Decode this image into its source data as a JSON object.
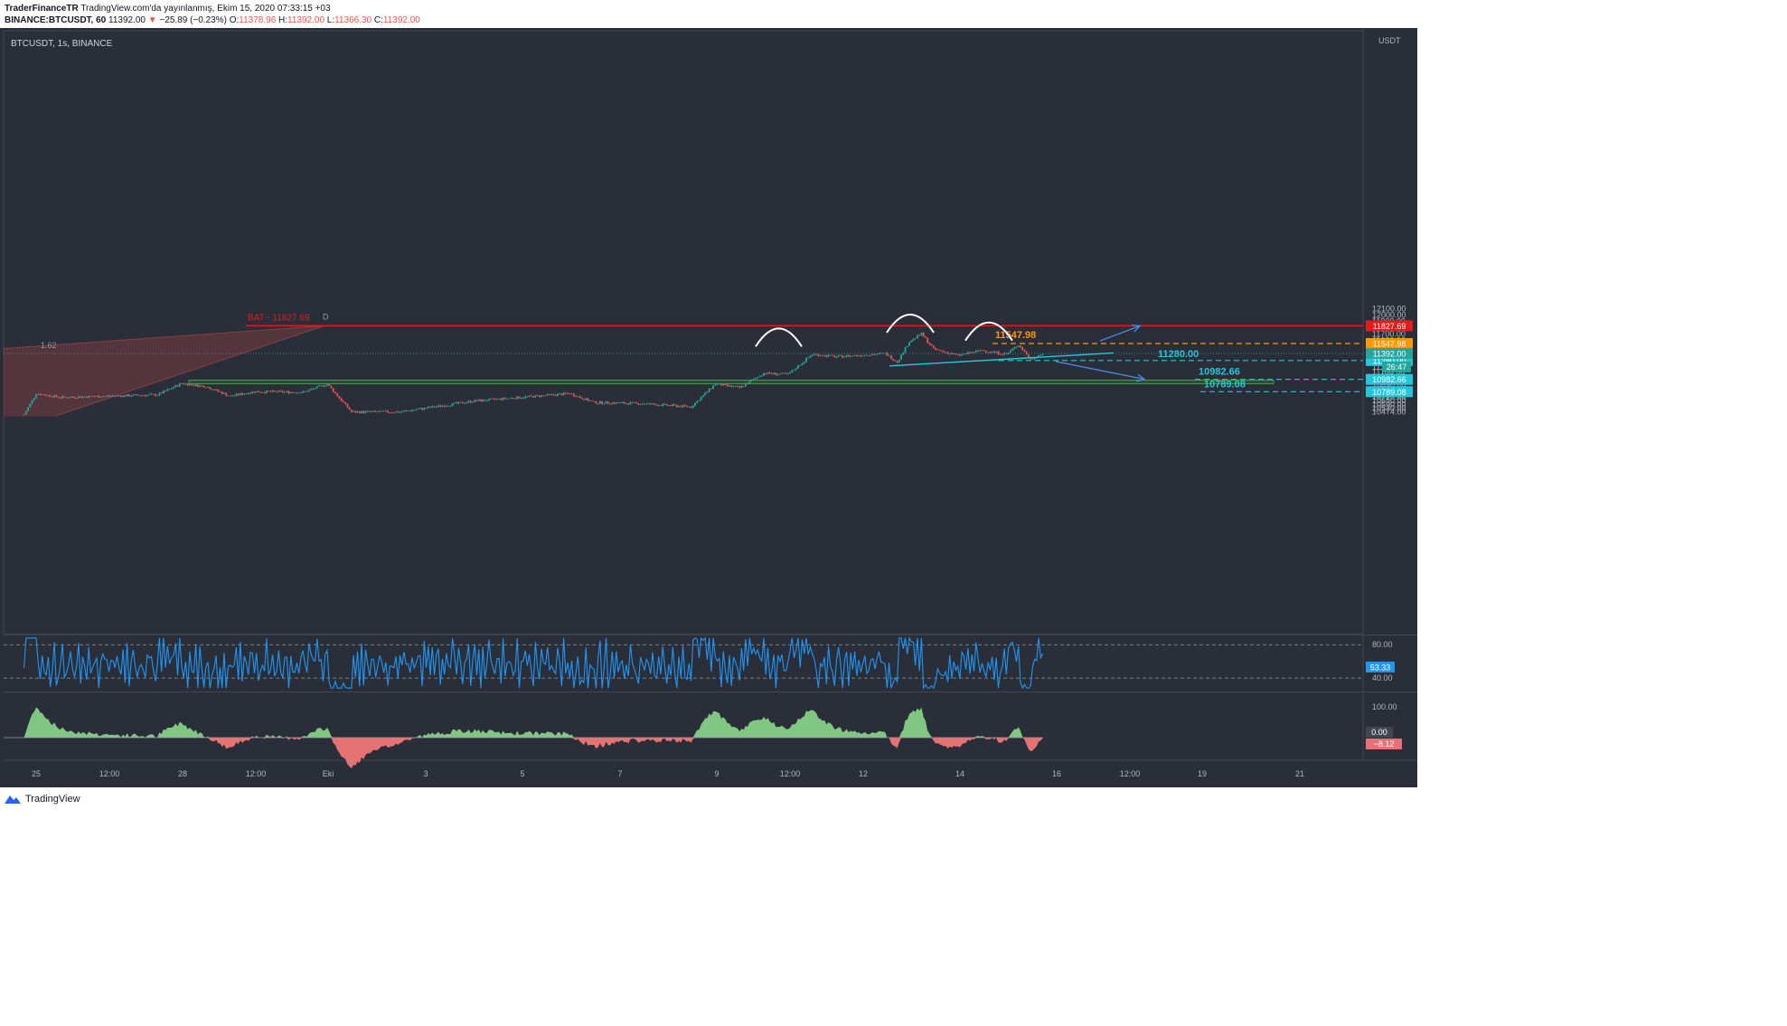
{
  "header": {
    "author": "TraderFinanceTR",
    "published": "TradingView.com'da yayınlanmış, Ekim 15, 2020 07:33:15 +03",
    "symbol_line": "BINANCE:BTCUSDT, 60",
    "last": "11392.00",
    "change": "−25.89 (−0.23%)",
    "o_label": "O:",
    "o": "11378.96",
    "h_label": "H:",
    "h": "11392.00",
    "l_label": "L:",
    "l": "11366.30",
    "c_label": "C:",
    "c": "11392.00"
  },
  "legend": "BTCUSDT, 1s, BINANCE",
  "currency": "USDT",
  "footer": {
    "brand": "TradingView"
  },
  "colors": {
    "background": "#2a2e39",
    "up": "#26a69a",
    "down": "#ef5350",
    "red_line": "#e31b1b",
    "orange": "#ff9800",
    "cyan": "#26c6da",
    "blue_arrow": "#4a8fe7",
    "rsi_line": "#2196f3",
    "macd_pos": "#81c784",
    "macd_neg": "#e57373"
  },
  "chart_data": {
    "type": "candlestick",
    "timeframe": "60",
    "yaxis": {
      "ticks": [
        12100.0,
        12000.0,
        11900.0,
        11800.0,
        11700.0,
        11600.0,
        11500.0,
        11420.0,
        11180.0,
        11100.0,
        11025.0,
        10950.0,
        10890.0,
        10830.0,
        10710.0,
        10650.0,
        10590.0,
        10530.0,
        10474.0
      ],
      "tick_labels": [
        "12100.00",
        "12000.00",
        "11900.00",
        "11800.00",
        "11700.00",
        "11600.00",
        "11500.00",
        "11420.00",
        "11180.00",
        "11100.00",
        "11025.00",
        "10950.00",
        "10890.00",
        "10830.00",
        "10710.00",
        "10650.00",
        "10590.00",
        "10530.00",
        "10474.00"
      ]
    },
    "xaxis": {
      "labels": [
        "25",
        "12:00",
        "28",
        "12:00",
        "Eki",
        "3",
        "5",
        "7",
        "9",
        "12:00",
        "12",
        "14",
        "16",
        "12:00",
        "19",
        "21"
      ]
    },
    "price_path_keypoints": [
      {
        "date": "Sep 24 18:00",
        "price": 10430
      },
      {
        "date": "Sep 25 00:00",
        "price": 10760
      },
      {
        "date": "Sep 25 12:00",
        "price": 10700
      },
      {
        "date": "Sep 27 12:00",
        "price": 10740
      },
      {
        "date": "Sep 28 00:00",
        "price": 10920
      },
      {
        "date": "Sep 28 12:00",
        "price": 10870
      },
      {
        "date": "Sep 29 00:00",
        "price": 10720
      },
      {
        "date": "Sep 29 12:00",
        "price": 10790
      },
      {
        "date": "Sep 30 12:00",
        "price": 10780
      },
      {
        "date": "Oct 1 00:00",
        "price": 10910
      },
      {
        "date": "Oct 1 12:00",
        "price": 10470
      },
      {
        "date": "Oct 2 12:00",
        "price": 10470
      },
      {
        "date": "Oct 4 00:00",
        "price": 10640
      },
      {
        "date": "Oct 5 12:00",
        "price": 10730
      },
      {
        "date": "Oct 6 00:00",
        "price": 10760
      },
      {
        "date": "Oct 6 12:00",
        "price": 10620
      },
      {
        "date": "Oct 7 12:00",
        "price": 10600
      },
      {
        "date": "Oct 8 12:00",
        "price": 10550
      },
      {
        "date": "Oct 9 00:00",
        "price": 10910
      },
      {
        "date": "Oct 9 12:00",
        "price": 10850
      },
      {
        "date": "Oct 10 00:00",
        "price": 11080
      },
      {
        "date": "Oct 10 12:00",
        "price": 11060
      },
      {
        "date": "Oct 11 00:00",
        "price": 11380
      },
      {
        "date": "Oct 11 12:00",
        "price": 11340
      },
      {
        "date": "Oct 12 12:00",
        "price": 11390
      },
      {
        "date": "Oct 12 18:00",
        "price": 11260
      },
      {
        "date": "Oct 13 00:00",
        "price": 11580
      },
      {
        "date": "Oct 13 06:00",
        "price": 11700
      },
      {
        "date": "Oct 13 12:00",
        "price": 11460
      },
      {
        "date": "Oct 14 00:00",
        "price": 11360
      },
      {
        "date": "Oct 14 12:00",
        "price": 11440
      },
      {
        "date": "Oct 15 00:00",
        "price": 11380
      },
      {
        "date": "Oct 15 06:00",
        "price": 11530
      },
      {
        "date": "Oct 15 12:00",
        "price": 11300
      },
      {
        "date": "Oct 15 18:00",
        "price": 11392
      }
    ],
    "horizontal_levels": [
      {
        "label": "BAT - 11827.69",
        "price": 11827.69,
        "tag": "11827.69",
        "color": "red"
      },
      {
        "label": "11547.98",
        "price": 11547.98,
        "tag": "11547.98",
        "color": "orange"
      },
      {
        "label": "11280.00",
        "price": 11280.0,
        "tag": "11280.00",
        "color": "cyan"
      },
      {
        "label": "10982.66",
        "price": 10982.66,
        "tag": "10982.66",
        "color": "cyan"
      },
      {
        "label": "10789.08",
        "price": 10789.08,
        "tag": "10789.08",
        "color": "cyan"
      }
    ],
    "pattern_letter": "D",
    "fib_label": "1.62",
    "current_price_tag": "11392.00",
    "countdown": "26:47",
    "rsi": {
      "levels": [
        80.0,
        40.0
      ],
      "level_labels": [
        "80.00",
        "40.00"
      ],
      "value": "53.33"
    },
    "macd": {
      "ticks": [
        100.0
      ],
      "tick_labels": [
        "100.00"
      ],
      "zero": "0.00",
      "value": "−8.12"
    }
  }
}
